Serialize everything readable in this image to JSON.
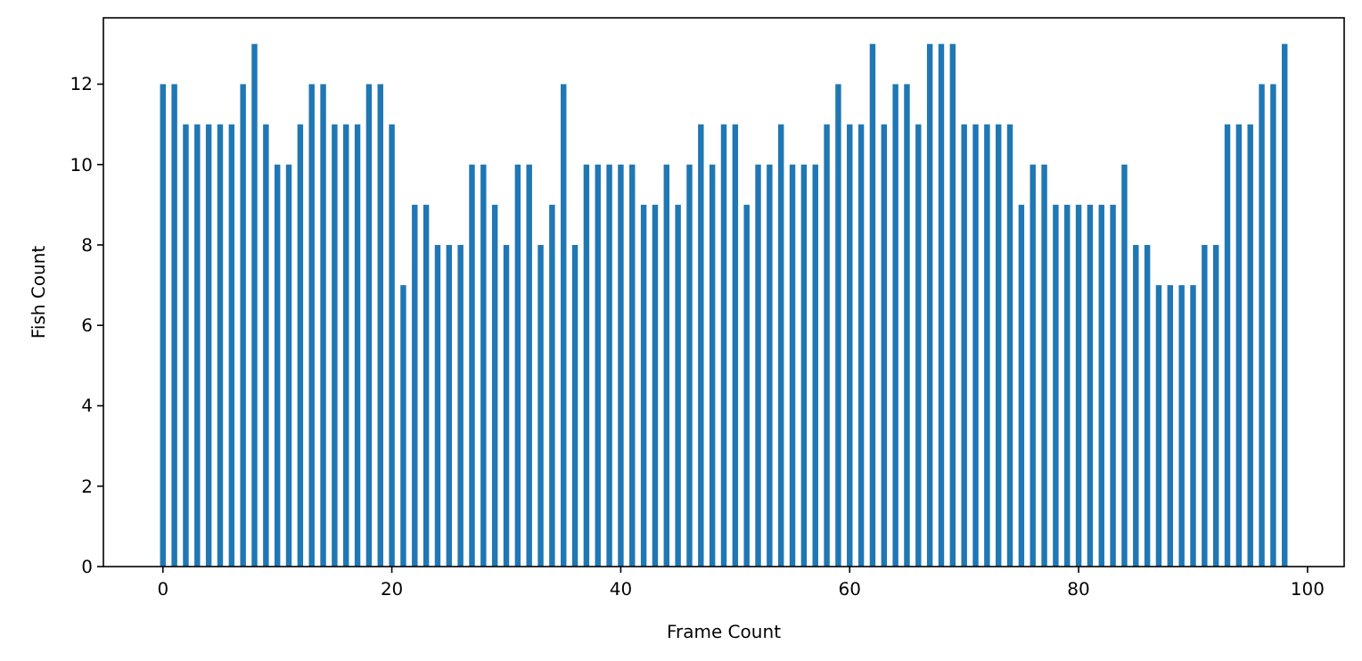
{
  "chart_data": {
    "type": "bar",
    "xlabel": "Frame Count",
    "ylabel": "Fish Count",
    "x": [
      0,
      1,
      2,
      3,
      4,
      5,
      6,
      7,
      8,
      9,
      10,
      11,
      12,
      13,
      14,
      15,
      16,
      17,
      18,
      19,
      20,
      21,
      22,
      23,
      24,
      25,
      26,
      27,
      28,
      29,
      30,
      31,
      32,
      33,
      34,
      35,
      36,
      37,
      38,
      39,
      40,
      41,
      42,
      43,
      44,
      45,
      46,
      47,
      48,
      49,
      50,
      51,
      52,
      53,
      54,
      55,
      56,
      57,
      58,
      59,
      60,
      61,
      62,
      63,
      64,
      65,
      66,
      67,
      68,
      69,
      70,
      71,
      72,
      73,
      74,
      75,
      76,
      77,
      78,
      79,
      80,
      81,
      82,
      83,
      84,
      85,
      86,
      87,
      88,
      89,
      90,
      91,
      92,
      93,
      94,
      95,
      96,
      97,
      98
    ],
    "values": [
      12,
      12,
      11,
      11,
      11,
      11,
      11,
      12,
      13,
      11,
      10,
      10,
      11,
      12,
      12,
      11,
      11,
      11,
      12,
      12,
      11,
      7,
      9,
      9,
      8,
      8,
      8,
      10,
      10,
      9,
      8,
      10,
      10,
      8,
      9,
      12,
      8,
      10,
      10,
      10,
      10,
      10,
      9,
      9,
      10,
      9,
      10,
      11,
      10,
      11,
      11,
      9,
      10,
      10,
      11,
      10,
      10,
      10,
      11,
      12,
      11,
      11,
      13,
      11,
      12,
      12,
      11,
      13,
      13,
      13,
      11,
      11,
      11,
      11,
      11,
      9,
      10,
      10,
      9,
      9,
      9,
      9,
      9,
      9,
      10,
      8,
      8,
      7,
      7,
      7,
      7,
      8,
      8,
      11,
      11,
      11,
      12,
      12,
      13
    ],
    "color": "#1f77b4",
    "xlim": [
      -5.2,
      103.2
    ],
    "ylim": [
      0,
      13.65
    ],
    "xticks": [
      0,
      20,
      40,
      60,
      80,
      100
    ],
    "yticks": [
      0,
      2,
      4,
      6,
      8,
      10,
      12
    ]
  }
}
